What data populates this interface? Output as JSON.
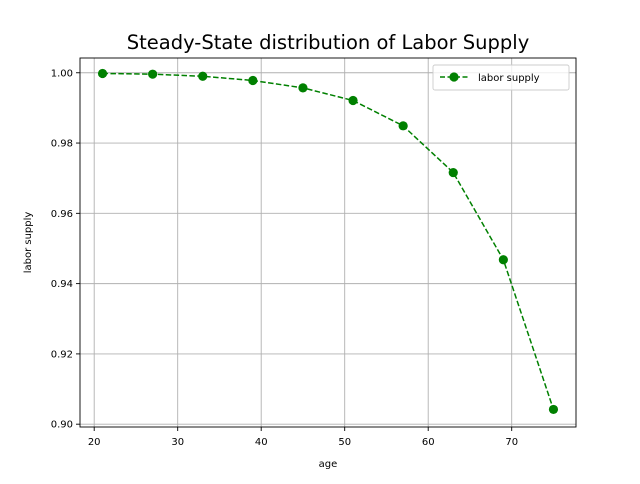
{
  "chart_data": {
    "type": "line",
    "title": "Steady-State distribution of Labor Supply",
    "xlabel": "age",
    "ylabel": "labor supply",
    "xlim": [
      18.3,
      77.7
    ],
    "ylim": [
      0.8992,
      1.0042
    ],
    "xticks": [
      20,
      30,
      40,
      50,
      60,
      70
    ],
    "yticks": [
      0.9,
      0.92,
      0.94,
      0.96,
      0.98,
      1.0
    ],
    "xtick_labels": [
      "20",
      "30",
      "40",
      "50",
      "60",
      "70"
    ],
    "ytick_labels": [
      "0.90",
      "0.92",
      "0.94",
      "0.96",
      "0.98",
      "1.00"
    ],
    "grid": true,
    "legend_position": "upper right",
    "series": [
      {
        "name": "labor supply",
        "color": "#008000",
        "line_style": "dashed",
        "marker": "circle",
        "x": [
          21,
          27,
          33,
          39,
          45,
          51,
          57,
          63,
          69,
          75
        ],
        "values": [
          0.9998,
          0.9996,
          0.999,
          0.9978,
          0.9957,
          0.9921,
          0.9849,
          0.9716,
          0.9468,
          0.9042
        ]
      }
    ]
  }
}
